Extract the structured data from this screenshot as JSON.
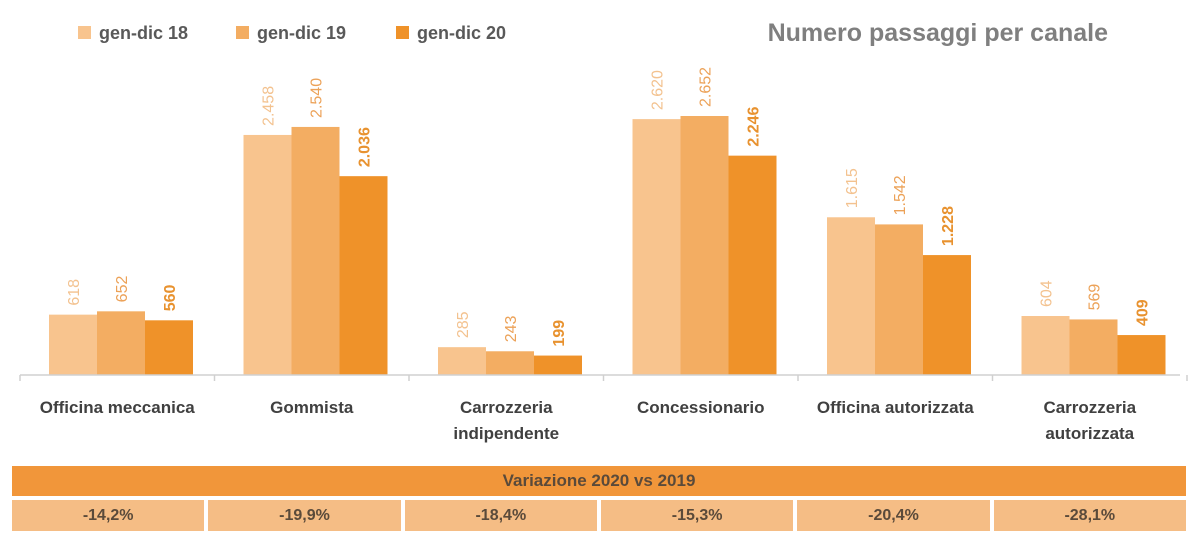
{
  "chart_data": {
    "type": "bar",
    "title": "Numero passaggi per canale",
    "categories": [
      [
        "Officina meccanica"
      ],
      [
        "Gommista"
      ],
      [
        "Carrozzeria",
        "indipendente"
      ],
      [
        "Concessionario"
      ],
      [
        "Officina autorizzata"
      ],
      [
        "Carrozzeria",
        "autorizzata"
      ]
    ],
    "series": [
      {
        "name": "gen-dic 18",
        "color": "#f8c48e",
        "label_color": "#f3c28f",
        "bold": false,
        "values": [
          618,
          2458,
          285,
          2620,
          1615,
          604
        ],
        "labels": [
          "618",
          "2.458",
          "285",
          "2.620",
          "1.615",
          "604"
        ]
      },
      {
        "name": "gen-dic 19",
        "color": "#f3ad62",
        "label_color": "#eca258",
        "bold": false,
        "values": [
          652,
          2540,
          243,
          2652,
          1542,
          569
        ],
        "labels": [
          "652",
          "2.540",
          "243",
          "2.652",
          "1.542",
          "569"
        ]
      },
      {
        "name": "gen-dic 20",
        "color": "#ef9229",
        "label_color": "#e8922f",
        "bold": true,
        "values": [
          560,
          2036,
          199,
          2246,
          1228,
          409
        ],
        "labels": [
          "560",
          "2.036",
          "199",
          "2.246",
          "1.228",
          "409"
        ]
      }
    ],
    "ylim": [
      0,
      2652
    ],
    "legend_position": "top-left",
    "grid": false
  },
  "variation": {
    "header": "Variazione 2020 vs 2019",
    "values": [
      "-14,2%",
      "-19,9%",
      "-18,4%",
      "-15,3%",
      "-20,4%",
      "-28,1%"
    ]
  }
}
